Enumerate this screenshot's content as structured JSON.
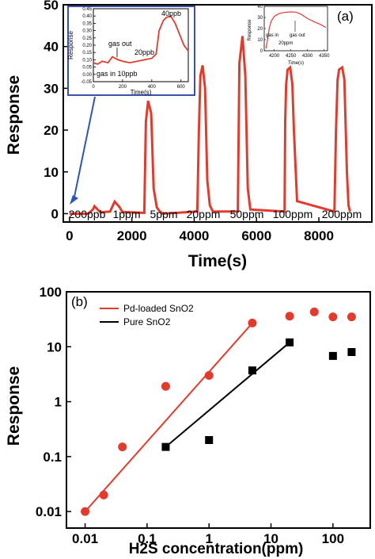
{
  "colors": {
    "red": "#e23b2e",
    "black": "#000000",
    "inset_border": "#3a50a8",
    "arrow": "#2f56b4"
  },
  "chart_data": [
    {
      "type": "line",
      "panel_label": "(a)",
      "xlabel": "Time(s)",
      "ylabel": "Response",
      "xlim": [
        -200,
        9700
      ],
      "ylim": [
        -2,
        50
      ],
      "xticks": [
        "0",
        "2000",
        "4000",
        "6000",
        "8000"
      ],
      "yticks": [
        "0",
        "10",
        "20",
        "30",
        "40",
        "50"
      ],
      "series": [
        {
          "x": [
            0,
            300,
            600,
            750,
            800,
            900,
            1000,
            1300,
            1450,
            1600,
            1700,
            2400,
            2450,
            2520,
            2620,
            2700,
            2800,
            2900,
            3000,
            4100,
            4150,
            4200,
            4270,
            4350,
            4420,
            4500,
            4600,
            5400,
            5450,
            5550,
            5640,
            5720,
            5800,
            6900,
            6920,
            6950,
            7000,
            7080,
            7150,
            7200,
            7300,
            8500,
            8550,
            8600,
            8650,
            8750,
            8820,
            8900,
            8950,
            9000
          ],
          "y": [
            0,
            0,
            0,
            1,
            1.8,
            1,
            0.3,
            0.5,
            2.9,
            1.6,
            0.4,
            0.2,
            22,
            27,
            24,
            6,
            1.5,
            0.5,
            0,
            0.5,
            20,
            33,
            35.5,
            30,
            8,
            2,
            0.5,
            0.5,
            36,
            42.5,
            33,
            6,
            1,
            0.5,
            22,
            31,
            34.5,
            35,
            31,
            20,
            3,
            0.5,
            20,
            32,
            34.5,
            35,
            32,
            10,
            2,
            0.5
          ]
        }
      ],
      "step_labels": [
        "200ppb",
        "1ppm",
        "5ppm",
        "20ppm",
        "50ppm",
        "100ppm",
        "200ppm"
      ],
      "insets": [
        {
          "type": "line",
          "xlabel": "Time(s)",
          "ylabel": "Response",
          "xlim": [
            0,
            650
          ],
          "ylim": [
            -0.05,
            0.45
          ],
          "xticks": [
            "0",
            "200",
            "400",
            "600"
          ],
          "yticks": [
            "-0.05",
            "0.00",
            "0.05",
            "0.10",
            "0.15",
            "0.20",
            "0.25",
            "0.30",
            "0.35",
            "0.40",
            "0.45"
          ],
          "x": [
            0,
            30,
            60,
            100,
            130,
            150,
            170,
            200,
            250,
            300,
            350,
            400,
            430,
            450,
            480,
            500,
            530,
            560,
            600,
            620,
            650
          ],
          "y": [
            0.08,
            0.07,
            0.09,
            0.08,
            0.12,
            0.11,
            0.1,
            0.09,
            0.08,
            0.09,
            0.1,
            0.11,
            0.14,
            0.3,
            0.37,
            0.39,
            0.4,
            0.35,
            0.25,
            0.2,
            0.16
          ],
          "annotations": [
            "gas out",
            "gas in 10ppb",
            "20ppb",
            "40ppb"
          ]
        },
        {
          "type": "line",
          "xlabel": "Time(s)",
          "ylabel": "Response",
          "xlim": [
            4170,
            4360
          ],
          "ylim": [
            0,
            40
          ],
          "xticks": [
            "4200",
            "4250",
            "4300",
            "4350"
          ],
          "yticks": [
            "0",
            "10",
            "20",
            "30",
            "40"
          ],
          "x": [
            4175,
            4180,
            4185,
            4190,
            4200,
            4215,
            4230,
            4250,
            4265,
            4280,
            4300,
            4320,
            4340,
            4355
          ],
          "y": [
            2,
            10,
            20,
            26,
            31,
            33.5,
            34.5,
            35,
            34.8,
            33,
            29,
            26,
            23.5,
            21
          ],
          "annotations": [
            "gas in",
            "gas out",
            "20ppm"
          ]
        }
      ]
    },
    {
      "type": "scatter",
      "panel_label": "(b)",
      "xlabel": "H2S concentration(ppm)",
      "ylabel": "Response",
      "xscale": "log",
      "yscale": "log",
      "xlim": [
        0.005,
        400
      ],
      "ylim": [
        0.005,
        100
      ],
      "xticks": [
        "0.01",
        "0.1",
        "1",
        "10",
        "100"
      ],
      "yticks": [
        "0.01",
        "0.1",
        "1",
        "10",
        "100"
      ],
      "legend": "top-left",
      "series": [
        {
          "name": "Pd-loaded SnO2",
          "x": [
            0.01,
            0.02,
            0.04,
            0.2,
            1,
            5,
            20,
            50,
            100,
            200
          ],
          "y": [
            0.01,
            0.02,
            0.15,
            1.9,
            3,
            27,
            36,
            43,
            35,
            35
          ],
          "fit_x": [
            0.01,
            5
          ],
          "fit_y": [
            0.01,
            27
          ]
        },
        {
          "name": "Pure SnO2",
          "x": [
            0.2,
            1,
            5,
            20,
            100,
            200
          ],
          "y": [
            0.15,
            0.2,
            3.7,
            12,
            6.8,
            8
          ],
          "fit_x": [
            0.2,
            20
          ],
          "fit_y": [
            0.15,
            12
          ]
        }
      ]
    }
  ]
}
